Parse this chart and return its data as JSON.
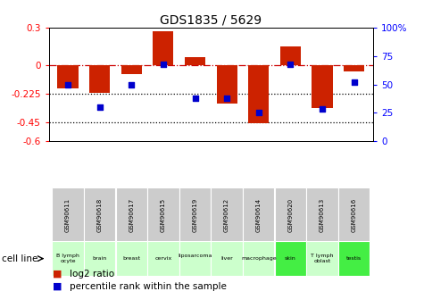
{
  "title": "GDS1835 / 5629",
  "samples": [
    "GSM90611",
    "GSM90618",
    "GSM90617",
    "GSM90615",
    "GSM90619",
    "GSM90612",
    "GSM90614",
    "GSM90620",
    "GSM90613",
    "GSM90616"
  ],
  "cell_lines": [
    "B lymph\nocyte",
    "brain",
    "breast",
    "cervix",
    "liposarcoma\n",
    "liver",
    "macrophage",
    "skin",
    "T lymph\noblast",
    "testis"
  ],
  "cell_line_colors": [
    "#ccffcc",
    "#ccffcc",
    "#ccffcc",
    "#ccffcc",
    "#ccffcc",
    "#ccffcc",
    "#ccffcc",
    "#44ee44",
    "#ccffcc",
    "#44ee44"
  ],
  "log2_ratio": [
    -0.18,
    -0.22,
    -0.065,
    0.27,
    0.07,
    -0.3,
    -0.46,
    0.155,
    -0.34,
    -0.05
  ],
  "percentile_rank": [
    50,
    30,
    50,
    68,
    38,
    38,
    25,
    68,
    28,
    52
  ],
  "ylim_left": [
    -0.6,
    0.3
  ],
  "ylim_right": [
    0,
    100
  ],
  "yticks_left": [
    0.3,
    0,
    -0.225,
    -0.45,
    -0.6
  ],
  "ytick_labels_left": [
    "0.3",
    "0",
    "-0.225",
    "-0.45",
    "-0.6"
  ],
  "yticks_right": [
    100,
    75,
    50,
    25,
    0
  ],
  "ytick_labels_right": [
    "100%",
    "75",
    "50",
    "25",
    "0"
  ],
  "hline_zero": 0.0,
  "hline_dotted1": -0.225,
  "hline_dotted2": -0.45,
  "bar_color": "#cc2200",
  "dot_color": "#0000cc",
  "bar_width": 0.65,
  "dot_size": 22,
  "gsm_bg": "#cccccc",
  "cell_line_light": "#ccffcc",
  "cell_line_dark": "#44ee44"
}
